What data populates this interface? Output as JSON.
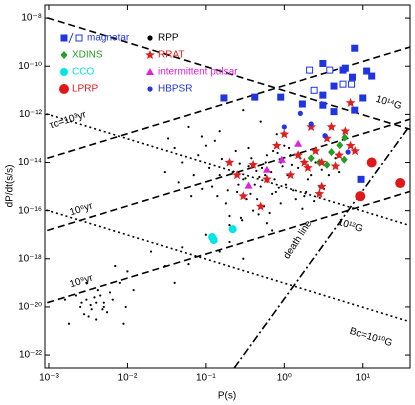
{
  "chart_data": {
    "type": "scatter",
    "x_label": "P(s)",
    "y_label": "dP/dt(s/s)",
    "log_x": true,
    "log_y": true,
    "xlim": [
      0.00089,
      40
    ],
    "ylim": [
      2.9e-23,
      3.5e-08
    ],
    "xticks": [
      {
        "value": 0.001,
        "label": "10⁻³"
      },
      {
        "value": 0.01,
        "label": "10⁻²"
      },
      {
        "value": 0.1,
        "label": "10⁻¹"
      },
      {
        "value": 1,
        "label": "10⁰"
      },
      {
        "value": 10,
        "label": "10¹"
      }
    ],
    "yticks": [
      {
        "value": 1e-08,
        "label": "10⁻⁸"
      },
      {
        "value": 1e-10,
        "label": "10⁻¹⁰"
      },
      {
        "value": 1e-12,
        "label": "10⁻¹²"
      },
      {
        "value": 1e-14,
        "label": "10⁻¹⁴"
      },
      {
        "value": 1e-16,
        "label": "10⁻¹⁶"
      },
      {
        "value": 1e-18,
        "label": "10⁻¹⁸"
      },
      {
        "value": 1e-20,
        "label": "10⁻²⁰"
      },
      {
        "value": 1e-22,
        "label": "10⁻²²"
      }
    ],
    "series": [
      {
        "name": "magnetar",
        "color": "#1f35e0",
        "marker": "square",
        "x": [
          7.9,
          3.1,
          6.0,
          3.8,
          5.6,
          11.2,
          7.4,
          13,
          4.3,
          7.2,
          10,
          3.1,
          2.1,
          5.6,
          2.4,
          0.9,
          0.42,
          1.7,
          0.17,
          3.1,
          7.9,
          4.3,
          9.5
        ],
        "values": [
          5.6e-10,
          1.3e-10,
          8.3e-11,
          6.9e-11,
          6.9e-11,
          6.3e-11,
          3.5e-11,
          3.9e-11,
          1.5e-11,
          1.8e-11,
          4.8e-12,
          6.3e-12,
          6.9e-11,
          1.8e-11,
          1e-11,
          5.2e-12,
          5.2e-12,
          2.7e-12,
          4.8e-12,
          2.4e-12,
          1.5e-12,
          1.3e-12,
          2e-15
        ],
        "hollow": [
          false,
          false,
          false,
          true,
          false,
          false,
          false,
          false,
          false,
          true,
          false,
          false,
          true,
          true,
          true,
          false,
          false,
          false,
          false,
          false,
          false,
          false,
          false
        ]
      },
      {
        "name": "RPP",
        "color": "#000000",
        "marker": "dot",
        "x": [
          0.5,
          0.3,
          0.7,
          1.1,
          0.25,
          0.4,
          0.6,
          0.9,
          1.5,
          2.0,
          0.15,
          0.2,
          0.35,
          0.8,
          0.1,
          0.12,
          0.45,
          0.55,
          1.3,
          0.28,
          0.65,
          1.8,
          2.5,
          3.0,
          0.18,
          0.09,
          0.07,
          0.05,
          0.04,
          0.033,
          0.06,
          0.089,
          0.15,
          0.3,
          0.5,
          1.0,
          1.2,
          0.42,
          0.48,
          0.52,
          0.38,
          0.72,
          0.95,
          1.6,
          2.2,
          0.22,
          0.26,
          0.33,
          0.75,
          0.85,
          1.05,
          1.4,
          2.8,
          3.7,
          4.5,
          0.6,
          0.4,
          0.2,
          0.14,
          0.11,
          0.08,
          0.03,
          0.045,
          0.065,
          0.2,
          0.9,
          1.7,
          0.35,
          0.58,
          0.68,
          0.78,
          0.32,
          0.44,
          0.62,
          0.27,
          0.16,
          0.24,
          0.13,
          1.25,
          1.9,
          2.4,
          3.2,
          5.0,
          0.47,
          0.37,
          0.57,
          0.82,
          1.15,
          0.19,
          0.29,
          0.7,
          0.02,
          0.05,
          0.1,
          0.03,
          0.01,
          0.008,
          0.005,
          0.2,
          0.15,
          0.06,
          0.04,
          0.012,
          0.3,
          0.0025,
          0.003,
          0.0035,
          0.004,
          0.0028,
          0.0045,
          0.005,
          0.0022,
          0.0032,
          0.0038,
          0.0055,
          0.0042,
          0.003,
          0.0065,
          0.0026,
          0.0048,
          0.0034,
          0.0018,
          0.006,
          0.004,
          0.007,
          0.0016,
          0.0095,
          0.0089
        ],
        "values": [
          1e-15,
          2e-15,
          5e-16,
          3e-15,
          6e-16,
          8e-15,
          2e-14,
          1e-14,
          6e-15,
          2e-15,
          3e-15,
          1e-14,
          4e-14,
          1.5e-13,
          5e-14,
          1e-15,
          3e-16,
          1.5e-16,
          7e-16,
          5e-17,
          8e-17,
          4e-16,
          1e-14,
          5e-15,
          2e-16,
          8e-16,
          3e-15,
          1e-14,
          4e-14,
          1e-13,
          3e-13,
          1.2e-13,
          2e-13,
          1.5e-12,
          5e-13,
          5e-14,
          2e-14,
          1.2e-15,
          2.5e-15,
          6e-15,
          1.5e-14,
          3e-14,
          7e-15,
          1.5e-14,
          3e-15,
          4e-15,
          1.2e-15,
          3e-16,
          2e-15,
          9e-16,
          1.2e-15,
          3e-16,
          1e-15,
          3e-15,
          1.5e-14,
          3e-17,
          1e-16,
          6e-17,
          4e-16,
          6e-15,
          2e-14,
          4e-15,
          1.5e-15,
          4e-16,
          2.5e-17,
          2e-16,
          1.2e-16,
          7e-15,
          1e-14,
          4e-15,
          6e-16,
          2.2e-15,
          4.5e-15,
          1.8e-15,
          9e-15,
          1.4e-14,
          3e-14,
          8e-14,
          8e-15,
          6e-16,
          2.5e-16,
          8e-16,
          4e-15,
          7e-17,
          5e-16,
          3e-15,
          2.5e-14,
          4e-14,
          7e-16,
          4e-17,
          1.5e-17,
          2e-18,
          3e-18,
          1e-17,
          5e-19,
          3e-19,
          1e-19,
          1.5e-20,
          5e-18,
          2e-18,
          6e-19,
          1e-19,
          5e-20,
          1e-18,
          1e-20,
          2e-20,
          8e-21,
          1.5e-20,
          5e-21,
          3e-20,
          1e-20,
          3e-20,
          4e-21,
          2.5e-20,
          6e-21,
          5e-20,
          1e-19,
          2e-20,
          1.5e-20,
          8e-21,
          1.2e-20,
          2e-21,
          4e-20,
          3e-21,
          5e-19,
          2e-20,
          1e-20,
          2e-21
        ]
      },
      {
        "name": "XDINS",
        "color": "#22a022",
        "marker": "diamond",
        "x": [
          4.0,
          5.1,
          5.8,
          3.5,
          2.8,
          5.9,
          2.2
        ],
        "values": [
          2.7e-14,
          5.2e-14,
          1.3e-14,
          8e-15,
          1e-14,
          1.1e-13,
          1.5e-14
        ]
      },
      {
        "name": "RRAT",
        "color": "#e02020",
        "marker": "star",
        "x": [
          4,
          6,
          3.5,
          7,
          2.5,
          5,
          1.5,
          3,
          4.5,
          0.4,
          0.2,
          0.8,
          2,
          1.2,
          0.6,
          3,
          2.8,
          1.8,
          0.3,
          0.5,
          8,
          1,
          2.2,
          7,
          0.25
        ],
        "values": [
          3e-13,
          2e-13,
          1e-13,
          5e-14,
          3e-14,
          2e-14,
          2e-14,
          1e-14,
          7e-15,
          8e-15,
          1e-14,
          5e-14,
          6e-15,
          3e-15,
          2e-15,
          1e-15,
          5e-16,
          1e-14,
          4e-16,
          1.5e-16,
          3e-14,
          1.5e-13,
          3e-13,
          3e-12,
          3e-15
        ]
      },
      {
        "name": "CCO",
        "color": "#00e5e5",
        "marker": "circle",
        "x": [
          0.126,
          0.12,
          0.22
        ],
        "values": [
          6e-18,
          8e-18,
          1.7e-17
        ]
      },
      {
        "name": "intermittent pulsar",
        "color": "#e020e0",
        "marker": "triangle",
        "x": [
          0.93,
          0.35,
          1.5,
          0.6
        ],
        "values": [
          1.3e-14,
          1.1e-15,
          6e-14,
          5e-15
        ]
      },
      {
        "name": "LPRP",
        "color": "#e01818",
        "marker": "bigcircle",
        "x": [
          30,
          9.3,
          13
        ],
        "values": [
          1.4e-15,
          4e-16,
          1e-14
        ]
      },
      {
        "name": "HBPSR",
        "color": "#2038e0",
        "marker": "smallcircle",
        "x": [
          0.17,
          1.6,
          2.2,
          3.3,
          6.5,
          1.0
        ],
        "values": [
          5.2e-12,
          1.1e-12,
          4e-13,
          1.3e-13,
          2.7e-14,
          3e-13
        ]
      }
    ],
    "lines": [
      {
        "label": "τc=10³yr",
        "style": "dashed",
        "x": [
          0.0007,
          40
        ],
        "values": [
          1.1e-14,
          6.3e-10
        ]
      },
      {
        "label": "10⁶yr",
        "style": "dashed",
        "x": [
          0.0007,
          40
        ],
        "values": [
          1.1e-17,
          6.3e-13
        ]
      },
      {
        "label": "10⁹yr",
        "style": "dashed",
        "x": [
          0.0007,
          40
        ],
        "values": [
          1.1e-20,
          6.3e-16
        ]
      },
      {
        "label": "10¹⁴G",
        "style": "dashed",
        "x": [
          0.0007,
          40
        ],
        "values": [
          1.4e-08,
          2.4e-13
        ]
      },
      {
        "label": "10¹²G",
        "style": "dotted",
        "x": [
          0.0007,
          40
        ],
        "values": [
          1.4e-12,
          2.4e-17
        ]
      },
      {
        "label": "Bc=10¹⁰G",
        "style": "dotted",
        "x": [
          0.0007,
          40
        ],
        "values": [
          1.4e-16,
          2.4e-21
        ]
      },
      {
        "label": "death line",
        "style": "dashdot",
        "x": [
          0.23,
          40
        ],
        "values": [
          2.9e-23,
          3.5e-13
        ]
      }
    ]
  }
}
